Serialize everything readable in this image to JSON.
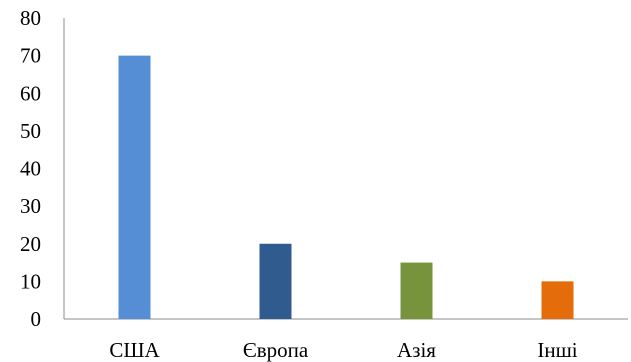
{
  "chart_data": {
    "type": "bar",
    "title": "",
    "xlabel": "",
    "ylabel": "",
    "categories": [
      "США",
      "Європа",
      "Азія",
      "Інші"
    ],
    "values": [
      70,
      20,
      15,
      10
    ],
    "colors": [
      "#558ED5",
      "#2F5B8E",
      "#77933C",
      "#E46C0A"
    ],
    "ylim": [
      0,
      80
    ],
    "yticks": [
      0,
      10,
      20,
      30,
      40,
      50,
      60,
      70,
      80
    ],
    "grid": false,
    "legend": "none"
  }
}
